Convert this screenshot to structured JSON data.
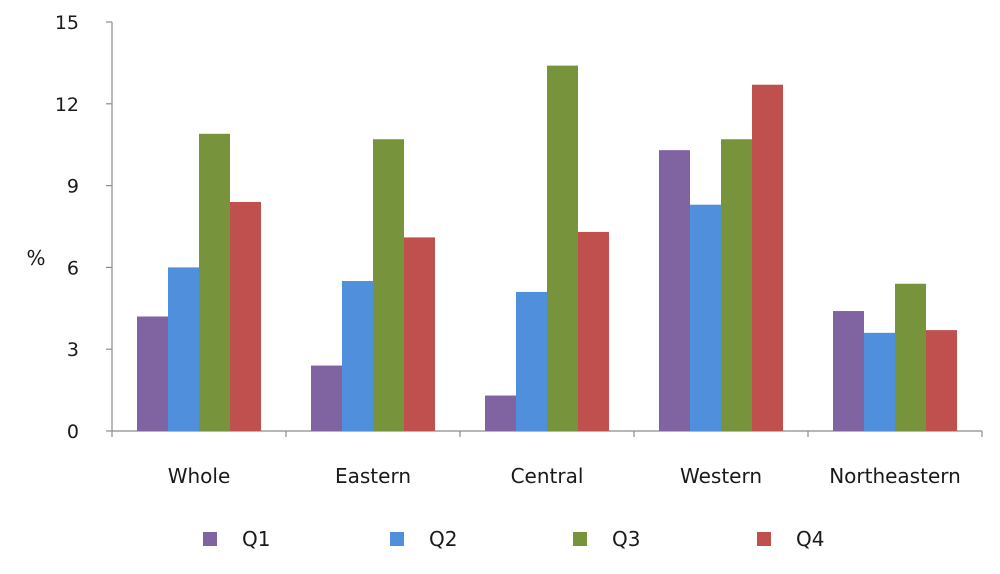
{
  "chart_data": {
    "type": "bar",
    "title": "",
    "xlabel": "",
    "ylabel": "%",
    "ylim": [
      0,
      15
    ],
    "yticks": [
      0,
      3,
      6,
      9,
      12,
      15
    ],
    "grid": false,
    "legend_position": "bottom",
    "categories": [
      "Whole",
      "Eastern",
      "Central",
      "Western",
      "Northeastern"
    ],
    "series": [
      {
        "name": "Q1",
        "color": "#8064a2",
        "values": [
          4.2,
          2.4,
          1.3,
          10.3,
          4.4
        ]
      },
      {
        "name": "Q2",
        "color": "#4f8fdc",
        "values": [
          6.0,
          5.5,
          5.1,
          8.3,
          3.6
        ]
      },
      {
        "name": "Q3",
        "color": "#77933c",
        "values": [
          10.9,
          10.7,
          13.4,
          10.7,
          5.4
        ]
      },
      {
        "name": "Q4",
        "color": "#c0504d",
        "values": [
          8.4,
          7.1,
          7.3,
          12.7,
          3.7
        ]
      }
    ]
  }
}
